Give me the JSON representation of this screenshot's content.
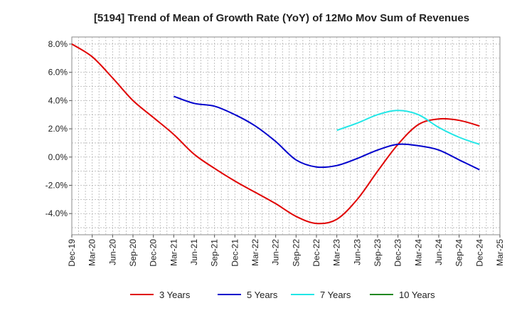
{
  "chart_data": {
    "type": "line",
    "title": "[5194]  Trend of Mean of Growth Rate (YoY) of 12Mo Mov Sum of Revenues",
    "xlabel": "",
    "ylabel": "",
    "ylim": [
      -5.5,
      8.5
    ],
    "y_ticks": [
      8.0,
      6.0,
      4.0,
      2.0,
      0.0,
      -2.0,
      -4.0
    ],
    "y_tick_labels": [
      "8.0%",
      "6.0%",
      "4.0%",
      "2.0%",
      "0.0%",
      "-2.0%",
      "-4.0%"
    ],
    "x_start": "Dec-19",
    "x_end": "Mar-25",
    "x_tick_labels": [
      "Dec-19",
      "Mar-20",
      "Jun-20",
      "Sep-20",
      "Dec-20",
      "Mar-21",
      "Jun-21",
      "Sep-21",
      "Dec-21",
      "Mar-22",
      "Jun-22",
      "Sep-22",
      "Dec-22",
      "Mar-23",
      "Jun-23",
      "Sep-23",
      "Dec-23",
      "Mar-24",
      "Jun-24",
      "Sep-24",
      "Dec-24",
      "Mar-25"
    ],
    "grid": true,
    "legend_position": "bottom",
    "series": [
      {
        "name": "3 Years",
        "color": "#e00000",
        "points": [
          [
            0,
            8.0
          ],
          [
            3,
            7.1
          ],
          [
            6,
            5.6
          ],
          [
            9,
            4.0
          ],
          [
            12,
            2.8
          ],
          [
            15,
            1.6
          ],
          [
            18,
            0.2
          ],
          [
            21,
            -0.8
          ],
          [
            24,
            -1.7
          ],
          [
            27,
            -2.5
          ],
          [
            30,
            -3.3
          ],
          [
            33,
            -4.2
          ],
          [
            36,
            -4.7
          ],
          [
            39,
            -4.4
          ],
          [
            42,
            -3.0
          ],
          [
            45,
            -1.0
          ],
          [
            48,
            0.9
          ],
          [
            51,
            2.3
          ],
          [
            54,
            2.7
          ],
          [
            57,
            2.6
          ],
          [
            60,
            2.2
          ]
        ]
      },
      {
        "name": "5 Years",
        "color": "#0000cc",
        "points": [
          [
            15,
            4.3
          ],
          [
            18,
            3.8
          ],
          [
            21,
            3.6
          ],
          [
            24,
            3.0
          ],
          [
            27,
            2.2
          ],
          [
            30,
            1.1
          ],
          [
            33,
            -0.2
          ],
          [
            36,
            -0.7
          ],
          [
            39,
            -0.6
          ],
          [
            42,
            -0.1
          ],
          [
            45,
            0.5
          ],
          [
            48,
            0.9
          ],
          [
            51,
            0.8
          ],
          [
            54,
            0.5
          ],
          [
            57,
            -0.2
          ],
          [
            60,
            -0.9
          ]
        ]
      },
      {
        "name": "7 Years",
        "color": "#22e6e6",
        "points": [
          [
            39,
            1.9
          ],
          [
            42,
            2.4
          ],
          [
            45,
            3.0
          ],
          [
            48,
            3.3
          ],
          [
            51,
            3.0
          ],
          [
            54,
            2.1
          ],
          [
            57,
            1.4
          ],
          [
            60,
            0.9
          ]
        ]
      },
      {
        "name": "10 Years",
        "color": "#228822",
        "points": []
      }
    ]
  }
}
